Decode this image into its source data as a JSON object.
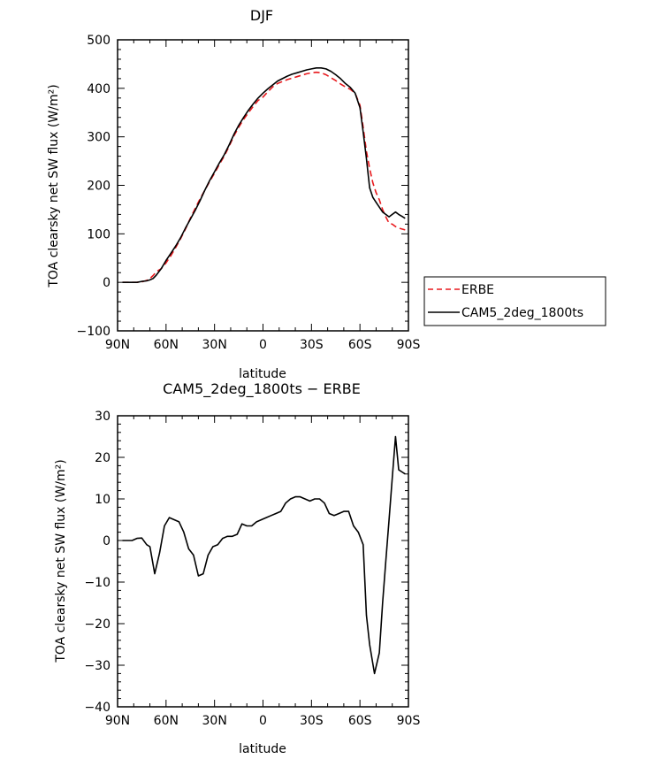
{
  "chart_data": [
    {
      "type": "line",
      "title": "DJF",
      "xlabel": "latitude",
      "ylabel": "TOA clearsky net SW flux (W/m²)",
      "xlim": [
        -90,
        90
      ],
      "ylim": [
        -100,
        500
      ],
      "x_ticks": [
        -90,
        -60,
        -30,
        0,
        30,
        60,
        90
      ],
      "x_tick_labels": [
        "90N",
        "60N",
        "30N",
        "0",
        "30S",
        "60S",
        "90S"
      ],
      "y_ticks": [
        -100,
        0,
        100,
        200,
        300,
        400,
        500
      ],
      "y_tick_labels": [
        "−100",
        "0",
        "100",
        "200",
        "300",
        "400",
        "500"
      ],
      "legend": {
        "placement": "outside-right",
        "entries": [
          "ERBE",
          "CAM5_2deg_1800ts"
        ]
      },
      "series": [
        {
          "name": "ERBE",
          "color": "#e8191d",
          "style": "dashed",
          "x": [
            -87,
            -84,
            -81,
            -78,
            -75,
            -72,
            -70,
            -68,
            -66,
            -63,
            -60,
            -57,
            -54,
            -51,
            -48,
            -45,
            -42,
            -39,
            -36,
            -33,
            -30,
            -27,
            -24,
            -21,
            -18,
            -15,
            -12,
            -9,
            -6,
            -3,
            0,
            3,
            6,
            9,
            12,
            15,
            18,
            21,
            24,
            27,
            30,
            33,
            36,
            39,
            42,
            45,
            48,
            51,
            54,
            57,
            60,
            62,
            64,
            66,
            68,
            70,
            72,
            74,
            76,
            78,
            80,
            82,
            84,
            86,
            88
          ],
          "y": [
            0,
            0,
            0,
            0,
            1,
            4,
            8,
            14,
            22,
            28,
            40,
            55,
            72,
            90,
            110,
            132,
            152,
            172,
            190,
            208,
            225,
            243,
            260,
            280,
            302,
            320,
            336,
            350,
            363,
            375,
            382,
            393,
            403,
            410,
            414,
            418,
            421,
            424,
            427,
            430,
            432,
            433,
            432,
            428,
            422,
            416,
            409,
            403,
            398,
            390,
            365,
            320,
            270,
            235,
            205,
            185,
            170,
            150,
            135,
            122,
            120,
            115,
            112,
            110,
            108
          ]
        },
        {
          "name": "CAM5_2deg_1800ts",
          "color": "#000000",
          "style": "solid",
          "x": [
            -87,
            -84,
            -81,
            -78,
            -75,
            -72,
            -70,
            -68,
            -66,
            -63,
            -60,
            -57,
            -54,
            -51,
            -48,
            -45,
            -42,
            -39,
            -36,
            -33,
            -30,
            -27,
            -24,
            -21,
            -18,
            -15,
            -12,
            -9,
            -6,
            -3,
            0,
            3,
            6,
            9,
            12,
            15,
            18,
            21,
            24,
            27,
            30,
            33,
            36,
            39,
            42,
            45,
            48,
            51,
            54,
            57,
            60,
            62,
            64,
            66,
            68,
            70,
            72,
            74,
            76,
            78,
            80,
            82,
            84,
            86,
            88
          ],
          "y": [
            0,
            0,
            0,
            0,
            2,
            3,
            5,
            8,
            15,
            28,
            45,
            60,
            75,
            92,
            112,
            130,
            148,
            168,
            190,
            210,
            228,
            246,
            263,
            283,
            305,
            324,
            340,
            355,
            368,
            380,
            390,
            399,
            407,
            415,
            420,
            425,
            429,
            432,
            435,
            438,
            440,
            442,
            442,
            440,
            435,
            428,
            420,
            410,
            402,
            390,
            360,
            310,
            255,
            195,
            175,
            165,
            155,
            145,
            140,
            135,
            140,
            145,
            140,
            136,
            132
          ]
        }
      ]
    },
    {
      "type": "line",
      "title": "CAM5_2deg_1800ts − ERBE",
      "xlabel": "latitude",
      "ylabel": "TOA clearsky net SW flux (W/m²)",
      "xlim": [
        -90,
        90
      ],
      "ylim": [
        -40,
        30
      ],
      "x_ticks": [
        -90,
        -60,
        -30,
        0,
        30,
        60,
        90
      ],
      "x_tick_labels": [
        "90N",
        "60N",
        "30N",
        "0",
        "30S",
        "60S",
        "90S"
      ],
      "y_ticks": [
        -40,
        -30,
        -20,
        -10,
        0,
        10,
        20,
        30
      ],
      "y_tick_labels": [
        "−40",
        "−30",
        "−20",
        "−10",
        "0",
        "10",
        "20",
        "30"
      ],
      "series": [
        {
          "name": "CAM5_2deg_1800ts − ERBE",
          "color": "#000000",
          "style": "solid",
          "x": [
            -87,
            -84,
            -81,
            -78,
            -75,
            -72,
            -70,
            -67,
            -64,
            -61,
            -58,
            -55,
            -52,
            -49,
            -46,
            -43,
            -40,
            -37,
            -34,
            -31,
            -28,
            -25,
            -22,
            -19,
            -16,
            -13,
            -10,
            -7,
            -4,
            -1,
            2,
            5,
            8,
            11,
            14,
            17,
            20,
            23,
            26,
            29,
            32,
            35,
            38,
            41,
            44,
            47,
            50,
            53,
            56,
            59,
            62,
            64,
            66,
            69,
            72,
            74,
            76,
            78,
            80,
            82,
            84,
            86,
            88
          ],
          "y": [
            0,
            0,
            0,
            0.5,
            0.6,
            -1,
            -1.5,
            -8,
            -3,
            3.5,
            5.5,
            5,
            4.5,
            2,
            -2,
            -3.5,
            -8.5,
            -8,
            -3.5,
            -1.5,
            -1,
            0.5,
            1,
            1,
            1.5,
            4,
            3.5,
            3.5,
            4.5,
            5,
            5.5,
            6,
            6.5,
            7,
            9,
            10,
            10.5,
            10.5,
            10,
            9.5,
            10,
            10,
            9,
            6.5,
            6,
            6.5,
            7,
            7,
            3.5,
            2,
            -1,
            -18,
            -25,
            -32,
            -27,
            -15,
            -5,
            5,
            15,
            25,
            17,
            16.5,
            16
          ]
        }
      ]
    }
  ]
}
